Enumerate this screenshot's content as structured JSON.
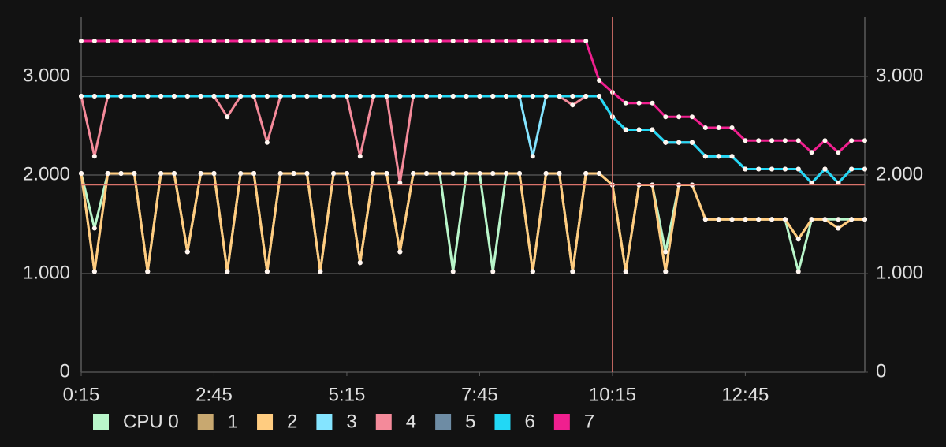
{
  "chart_data": {
    "type": "line",
    "x": [
      15,
      30,
      45,
      60,
      75,
      90,
      105,
      120,
      135,
      150,
      165,
      180,
      195,
      210,
      225,
      240,
      255,
      270,
      285,
      300,
      315,
      330,
      345,
      360,
      375,
      390,
      405,
      420,
      435,
      450,
      465,
      480,
      495,
      510,
      525,
      540,
      555,
      570,
      585,
      600,
      615,
      630,
      645,
      660,
      675,
      690,
      705,
      720,
      735,
      750,
      765,
      780,
      795,
      810,
      825,
      840,
      855,
      870,
      885,
      900
    ],
    "xlim": [
      15,
      900
    ],
    "xticks": [
      {
        "value": 15,
        "label": "0:15"
      },
      {
        "value": 165,
        "label": "2:45"
      },
      {
        "value": 315,
        "label": "5:15"
      },
      {
        "value": 465,
        "label": "7:45"
      },
      {
        "value": 615,
        "label": "10:15"
      },
      {
        "value": 765,
        "label": "12:45"
      }
    ],
    "ylim": [
      0,
      3600
    ],
    "yticks": [
      0,
      {
        "value": 1000,
        "label": "1.000"
      },
      {
        "value": 2000,
        "label": "2.000"
      },
      {
        "value": 3000,
        "label": "3.000"
      }
    ],
    "y2lim": [
      0,
      3600
    ],
    "y2ticks": [
      0,
      {
        "value": 1000,
        "label": "1.000"
      },
      {
        "value": 2000,
        "label": "2.000"
      },
      {
        "value": 3000,
        "label": "3.000"
      }
    ],
    "grid": true,
    "legend": "bottom",
    "crosshair": {
      "x": 615,
      "y": 1900,
      "color": "#d9736b"
    },
    "series": [
      {
        "name": "CPU 0",
        "color": "#b9f6ca",
        "values": [
          2016,
          1460,
          2016,
          2016,
          2016,
          1020,
          2016,
          2016,
          1220,
          2016,
          2016,
          1020,
          2016,
          2016,
          1020,
          2016,
          2016,
          2016,
          1020,
          2016,
          2016,
          1110,
          2016,
          2016,
          1220,
          2016,
          2016,
          2016,
          1020,
          2016,
          2016,
          1020,
          2016,
          2016,
          1020,
          2016,
          2016,
          1020,
          2016,
          2016,
          1900,
          1020,
          1900,
          1900,
          1220,
          1900,
          1900,
          1550,
          1550,
          1550,
          1550,
          1550,
          1550,
          1550,
          1020,
          1550,
          1550,
          1550,
          1550,
          1550
        ]
      },
      {
        "name": "1",
        "color": "#c8a870",
        "values": [
          2016,
          1020,
          2016,
          2016,
          2016,
          1020,
          2016,
          2016,
          1220,
          2016,
          2016,
          1020,
          2016,
          2016,
          1020,
          2016,
          2016,
          2016,
          1020,
          2016,
          2016,
          1110,
          2016,
          2016,
          1220,
          2016,
          2016,
          2016,
          2016,
          2016,
          2016,
          2016,
          2016,
          2016,
          1020,
          2016,
          2016,
          1020,
          2016,
          2016,
          1900,
          1020,
          1900,
          1900,
          1020,
          1900,
          1900,
          1550,
          1550,
          1550,
          1550,
          1550,
          1550,
          1550,
          1350,
          1550,
          1550,
          1460,
          1550,
          1550
        ]
      },
      {
        "name": "2",
        "color": "#ffcc80",
        "values": [
          2016,
          1020,
          2016,
          2016,
          2016,
          1020,
          2016,
          2016,
          1220,
          2016,
          2016,
          1020,
          2016,
          2016,
          1020,
          2016,
          2016,
          2016,
          1020,
          2016,
          2016,
          1110,
          2016,
          2016,
          1220,
          2016,
          2016,
          2016,
          2016,
          2016,
          2016,
          2016,
          2016,
          2016,
          1020,
          2016,
          2016,
          1020,
          2016,
          2016,
          1900,
          1020,
          1900,
          1900,
          1020,
          1900,
          1900,
          1550,
          1550,
          1550,
          1550,
          1550,
          1550,
          1550,
          1350,
          1550,
          1550,
          1460,
          1550,
          1550
        ]
      },
      {
        "name": "3",
        "color": "#84e4ff",
        "values": [
          2800,
          2800,
          2800,
          2800,
          2800,
          2800,
          2800,
          2800,
          2800,
          2800,
          2800,
          2800,
          2800,
          2800,
          2800,
          2800,
          2800,
          2800,
          2800,
          2800,
          2800,
          2800,
          2800,
          2800,
          2800,
          2800,
          2800,
          2800,
          2800,
          2800,
          2800,
          2800,
          2800,
          2800,
          2190,
          2800,
          2800,
          2800,
          2800,
          2800,
          2590,
          2460,
          2460,
          2460,
          2330,
          2330,
          2330,
          2190,
          2190,
          2190,
          2060,
          2060,
          2060,
          2060,
          2060,
          1920,
          2060,
          1920,
          2060,
          2060
        ]
      },
      {
        "name": "4",
        "color": "#f48a9a",
        "values": [
          2800,
          2190,
          2800,
          2800,
          2800,
          2800,
          2800,
          2800,
          2800,
          2800,
          2800,
          2590,
          2800,
          2800,
          2330,
          2800,
          2800,
          2800,
          2800,
          2800,
          2800,
          2190,
          2800,
          2800,
          1920,
          2800,
          2800,
          2800,
          2800,
          2800,
          2800,
          2800,
          2800,
          2800,
          2800,
          2800,
          2800,
          2710,
          2800,
          2800,
          2590,
          2460,
          2460,
          2460,
          2330,
          2330,
          2330,
          2190,
          2190,
          2190,
          2060,
          2060,
          2060,
          2060,
          2060,
          1920,
          2060,
          1920,
          2060,
          2060
        ]
      },
      {
        "name": "5",
        "color": "#6e8ca4",
        "values": [
          2800,
          2800,
          2800,
          2800,
          2800,
          2800,
          2800,
          2800,
          2800,
          2800,
          2800,
          2800,
          2800,
          2800,
          2800,
          2800,
          2800,
          2800,
          2800,
          2800,
          2800,
          2800,
          2800,
          2800,
          2800,
          2800,
          2800,
          2800,
          2800,
          2800,
          2800,
          2800,
          2800,
          2800,
          2800,
          2800,
          2800,
          2800,
          2800,
          2800,
          2590,
          2460,
          2460,
          2460,
          2330,
          2330,
          2330,
          2190,
          2190,
          2190,
          2060,
          2060,
          2060,
          2060,
          2060,
          1920,
          2060,
          1920,
          2060,
          2060
        ]
      },
      {
        "name": "6",
        "color": "#22d8f5",
        "values": [
          2800,
          2800,
          2800,
          2800,
          2800,
          2800,
          2800,
          2800,
          2800,
          2800,
          2800,
          2800,
          2800,
          2800,
          2800,
          2800,
          2800,
          2800,
          2800,
          2800,
          2800,
          2800,
          2800,
          2800,
          2800,
          2800,
          2800,
          2800,
          2800,
          2800,
          2800,
          2800,
          2800,
          2800,
          2800,
          2800,
          2800,
          2800,
          2800,
          2800,
          2590,
          2460,
          2460,
          2460,
          2330,
          2330,
          2330,
          2190,
          2190,
          2190,
          2060,
          2060,
          2060,
          2060,
          2060,
          1920,
          2060,
          1920,
          2060,
          2060
        ]
      },
      {
        "name": "7",
        "color": "#f01f8f",
        "values": [
          3360,
          3360,
          3360,
          3360,
          3360,
          3360,
          3360,
          3360,
          3360,
          3360,
          3360,
          3360,
          3360,
          3360,
          3360,
          3360,
          3360,
          3360,
          3360,
          3360,
          3360,
          3360,
          3360,
          3360,
          3360,
          3360,
          3360,
          3360,
          3360,
          3360,
          3360,
          3360,
          3360,
          3360,
          3360,
          3360,
          3360,
          3360,
          3360,
          2960,
          2840,
          2730,
          2730,
          2730,
          2590,
          2590,
          2590,
          2480,
          2480,
          2480,
          2350,
          2350,
          2350,
          2350,
          2350,
          2230,
          2350,
          2230,
          2350,
          2350
        ]
      }
    ]
  }
}
